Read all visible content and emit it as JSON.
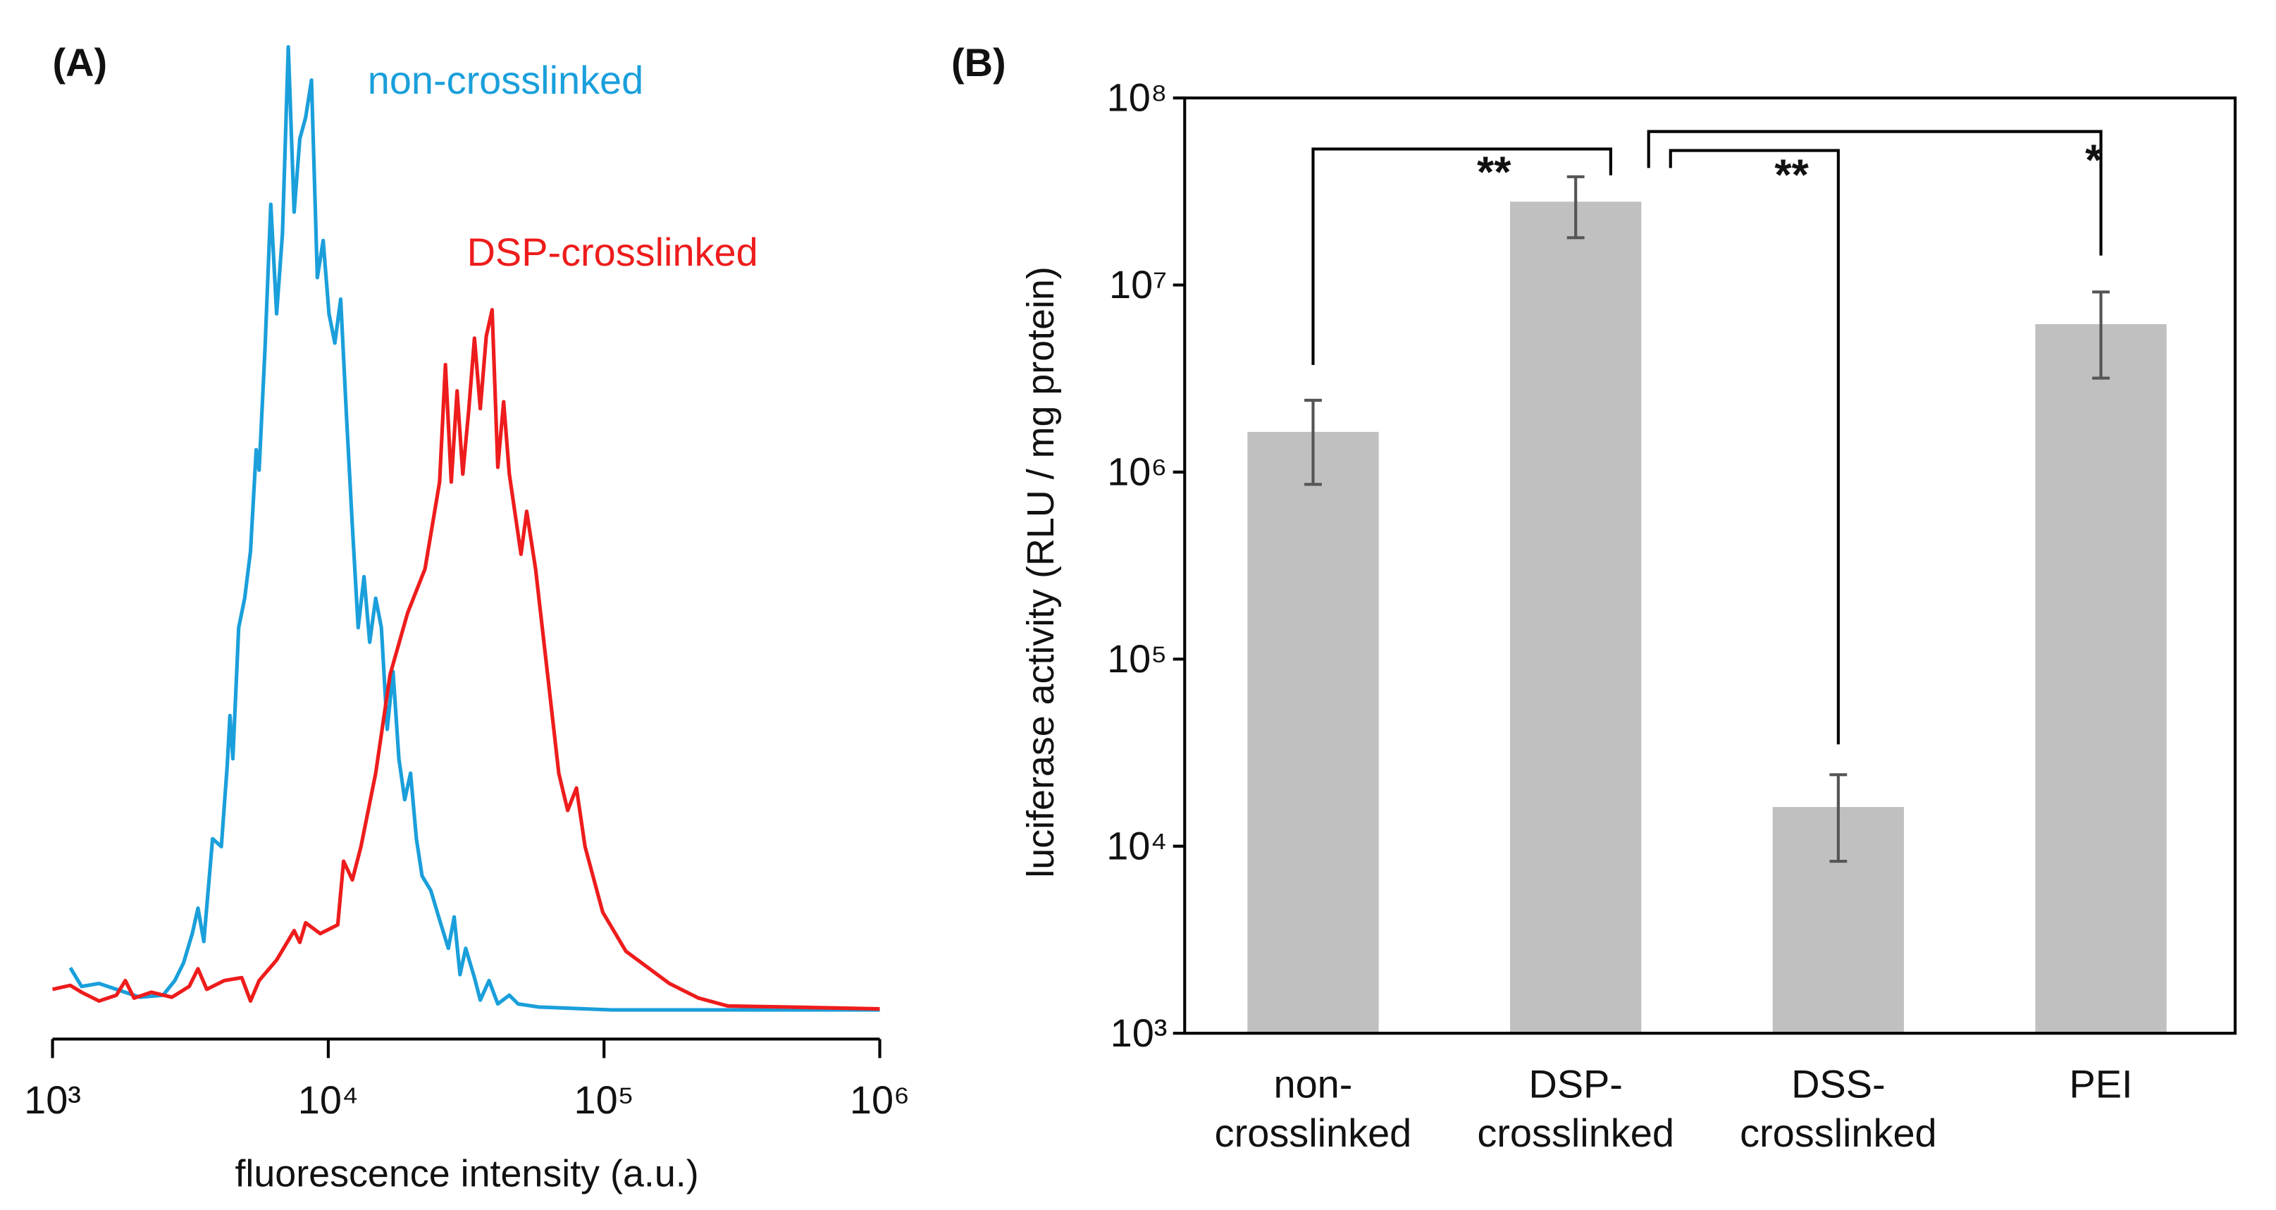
{
  "chart_data": [
    {
      "type": "line",
      "title": "(A)",
      "xlabel": "fluorescence intensity (a.u.)",
      "xscale": "log",
      "xlim": [
        1000,
        1000000
      ],
      "xticks": [
        {
          "value": 1000,
          "label": "10³"
        },
        {
          "value": 10000,
          "label": "10⁴"
        },
        {
          "value": 100000,
          "label": "10⁵"
        },
        {
          "value": 1000000,
          "label": "10⁶"
        }
      ],
      "ylim": [
        0,
        100
      ],
      "series": [
        {
          "name": "non-crosslinked",
          "color": "#1a9fdb",
          "x": [
            1160,
            1275,
            1475,
            1706,
            2074,
            2518,
            2775,
            2985,
            3212,
            3371,
            3539,
            3805,
            4094,
            4298,
            4401,
            4508,
            4732,
            4974,
            5221,
            5481,
            5615,
            5894,
            6190,
            6500,
            6820,
            7160,
            7520,
            7890,
            8280,
            8690,
            9125,
            9580,
            10060,
            10560,
            11090,
            11640,
            12220,
            12830,
            13470,
            14140,
            14850,
            15590,
            16360,
            17170,
            18030,
            18930,
            19870,
            20860,
            21900,
            23550,
            25330,
            27240,
            28600,
            30030,
            31520,
            33900,
            35590,
            38280,
            41170,
            45350,
            48780,
            57900,
            106300,
            281000,
            1000000
          ],
          "values": [
            5.5,
            3.6,
            3.9,
            3.3,
            2.5,
            2.7,
            4.2,
            6.0,
            9.0,
            11.6,
            8.2,
            18.7,
            17.9,
            26.1,
            31.3,
            26.9,
            40.3,
            43.3,
            48.1,
            58.5,
            56.4,
            68.7,
            83.6,
            72.4,
            80.6,
            99.7,
            82.8,
            90.3,
            92.5,
            96.3,
            76.1,
            79.9,
            72.4,
            69.4,
            73.9,
            61.9,
            50.7,
            40.3,
            45.5,
            38.8,
            43.3,
            40.3,
            29.9,
            35.8,
            26.9,
            22.7,
            25.4,
            18.7,
            14.9,
            13.4,
            10.4,
            7.5,
            10.7,
            4.8,
            7.5,
            4.5,
            2.2,
            4.2,
            1.8,
            2.7,
            1.8,
            1.5,
            1.2,
            1.2,
            1.2
          ]
        },
        {
          "name": "DSP-crosslinked",
          "color": "#ee1c1c",
          "x": [
            1000,
            1160,
            1275,
            1475,
            1706,
            1836,
            1975,
            2285,
            2710,
            3133,
            3371,
            3626,
            4195,
            4853,
            5221,
            5615,
            6500,
            7520,
            7890,
            8280,
            9350,
            10820,
            11360,
            12220,
            13140,
            14850,
            16760,
            19400,
            22440,
            25330,
            26610,
            27920,
            29310,
            30760,
            32290,
            33900,
            35590,
            37410,
            39260,
            41170,
            43250,
            45350,
            50000,
            52460,
            56490,
            62230,
            68550,
            73790,
            79430,
            85310,
            98850,
            120000,
            172700,
            220300,
            281000,
            457000,
            1000000
          ],
          "values": [
            3.3,
            3.7,
            3.0,
            2.1,
            2.7,
            4.2,
            2.4,
            3.0,
            2.5,
            3.6,
            5.4,
            3.3,
            4.2,
            4.5,
            2.1,
            4.2,
            6.3,
            9.3,
            8.1,
            10.1,
            9.0,
            9.9,
            16.4,
            14.5,
            17.9,
            25.4,
            35.5,
            41.8,
            46.3,
            55.2,
            67.2,
            55.2,
            64.5,
            56.0,
            62.4,
            69.9,
            62.7,
            70.1,
            72.8,
            56.7,
            63.4,
            56.0,
            47.8,
            52.2,
            46.3,
            35.8,
            25.4,
            21.6,
            23.9,
            17.9,
            11.2,
            7.2,
            3.9,
            2.4,
            1.6,
            1.5,
            1.3
          ]
        }
      ]
    },
    {
      "type": "bar",
      "title": "(B)",
      "ylabel": "luciferase activity (RLU / mg protein)",
      "yscale": "log",
      "ylim": [
        1000,
        100000000
      ],
      "yticks": [
        {
          "value": 1000,
          "label": "10³"
        },
        {
          "value": 10000,
          "label": "10⁴"
        },
        {
          "value": 100000,
          "label": "10⁵"
        },
        {
          "value": 1000000,
          "label": "10⁶"
        },
        {
          "value": 10000000,
          "label": "10⁷"
        },
        {
          "value": 100000000,
          "label": "10⁸"
        }
      ],
      "categories": [
        "non-\ncrosslinked",
        "DSP-\ncrosslinked",
        "DSS-\ncrosslinked",
        "PEI"
      ],
      "values": [
        1640000,
        27900000,
        16200,
        6180000
      ],
      "errors": [
        780000,
        10000000,
        7900,
        3000000
      ],
      "color": "#c0c0c0",
      "annotations": [
        {
          "text": "**"
        },
        {
          "text": "**"
        },
        {
          "text": "*"
        }
      ]
    }
  ]
}
